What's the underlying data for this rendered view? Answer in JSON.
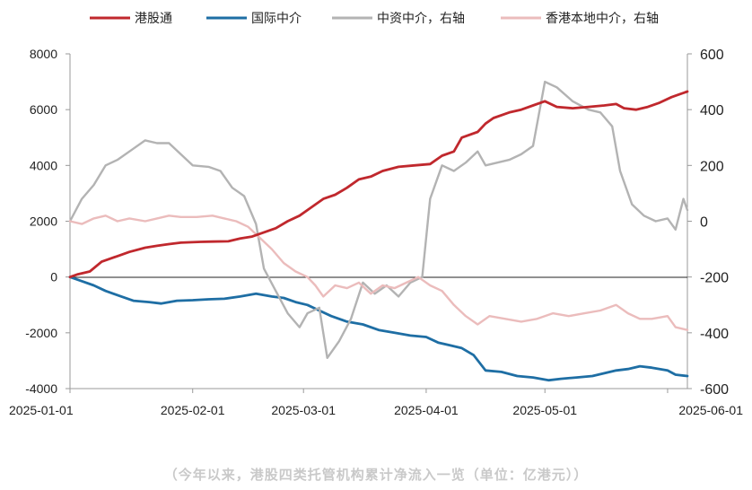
{
  "caption": "（今年以来，港股四类托管机构累计净流入一览（单位：亿港元））",
  "chart_data": {
    "type": "line",
    "x_ticks": [
      "2025-01-01",
      "2025-02-01",
      "2025-03-01",
      "2025-04-01",
      "2025-05-01",
      "2025-06-01"
    ],
    "x_range": [
      "2025-01-01",
      "2025-06-06"
    ],
    "y_left": {
      "lim": [
        -4000,
        8000
      ],
      "ticks": [
        -4000,
        -2000,
        0,
        2000,
        4000,
        6000,
        8000
      ]
    },
    "y_right": {
      "lim": [
        -600,
        600
      ],
      "ticks": [
        -600,
        -400,
        -200,
        0,
        200,
        400,
        600
      ]
    },
    "grid": false,
    "legend_position": "top",
    "series": [
      {
        "name": "港股通",
        "axis": "left",
        "color": "#c0282d",
        "width": 2.8,
        "points": [
          [
            "2025-01-01",
            0
          ],
          [
            "2025-01-03",
            100
          ],
          [
            "2025-01-06",
            200
          ],
          [
            "2025-01-09",
            550
          ],
          [
            "2025-01-13",
            750
          ],
          [
            "2025-01-16",
            900
          ],
          [
            "2025-01-20",
            1050
          ],
          [
            "2025-01-23",
            1120
          ],
          [
            "2025-01-26",
            1180
          ],
          [
            "2025-01-29",
            1230
          ],
          [
            "2025-02-03",
            1260
          ],
          [
            "2025-02-06",
            1270
          ],
          [
            "2025-02-10",
            1280
          ],
          [
            "2025-02-13",
            1380
          ],
          [
            "2025-02-16",
            1450
          ],
          [
            "2025-02-19",
            1600
          ],
          [
            "2025-02-22",
            1750
          ],
          [
            "2025-02-25",
            2000
          ],
          [
            "2025-02-28",
            2200
          ],
          [
            "2025-03-03",
            2500
          ],
          [
            "2025-03-06",
            2800
          ],
          [
            "2025-03-09",
            2950
          ],
          [
            "2025-03-12",
            3200
          ],
          [
            "2025-03-15",
            3500
          ],
          [
            "2025-03-18",
            3600
          ],
          [
            "2025-03-21",
            3800
          ],
          [
            "2025-03-25",
            3950
          ],
          [
            "2025-03-29",
            4000
          ],
          [
            "2025-04-02",
            4050
          ],
          [
            "2025-04-05",
            4350
          ],
          [
            "2025-04-08",
            4500
          ],
          [
            "2025-04-10",
            5000
          ],
          [
            "2025-04-14",
            5200
          ],
          [
            "2025-04-16",
            5500
          ],
          [
            "2025-04-18",
            5700
          ],
          [
            "2025-04-22",
            5900
          ],
          [
            "2025-04-25",
            6000
          ],
          [
            "2025-04-28",
            6150
          ],
          [
            "2025-05-01",
            6300
          ],
          [
            "2025-05-04",
            6100
          ],
          [
            "2025-05-08",
            6050
          ],
          [
            "2025-05-12",
            6100
          ],
          [
            "2025-05-16",
            6150
          ],
          [
            "2025-05-19",
            6200
          ],
          [
            "2025-05-21",
            6050
          ],
          [
            "2025-05-24",
            6000
          ],
          [
            "2025-05-27",
            6100
          ],
          [
            "2025-05-30",
            6250
          ],
          [
            "2025-06-02",
            6450
          ],
          [
            "2025-06-04",
            6550
          ],
          [
            "2025-06-06",
            6650
          ]
        ]
      },
      {
        "name": "国际中介",
        "axis": "left",
        "color": "#1e6ea4",
        "width": 2.8,
        "points": [
          [
            "2025-01-01",
            0
          ],
          [
            "2025-01-04",
            -150
          ],
          [
            "2025-01-07",
            -300
          ],
          [
            "2025-01-10",
            -500
          ],
          [
            "2025-01-14",
            -700
          ],
          [
            "2025-01-17",
            -850
          ],
          [
            "2025-01-21",
            -900
          ],
          [
            "2025-01-24",
            -950
          ],
          [
            "2025-01-28",
            -850
          ],
          [
            "2025-02-01",
            -830
          ],
          [
            "2025-02-05",
            -800
          ],
          [
            "2025-02-09",
            -780
          ],
          [
            "2025-02-13",
            -700
          ],
          [
            "2025-02-17",
            -600
          ],
          [
            "2025-02-21",
            -700
          ],
          [
            "2025-02-24",
            -750
          ],
          [
            "2025-02-27",
            -900
          ],
          [
            "2025-03-02",
            -1000
          ],
          [
            "2025-03-05",
            -1200
          ],
          [
            "2025-03-08",
            -1400
          ],
          [
            "2025-03-12",
            -1600
          ],
          [
            "2025-03-16",
            -1700
          ],
          [
            "2025-03-20",
            -1900
          ],
          [
            "2025-03-24",
            -2000
          ],
          [
            "2025-03-28",
            -2100
          ],
          [
            "2025-04-01",
            -2150
          ],
          [
            "2025-04-04",
            -2350
          ],
          [
            "2025-04-07",
            -2450
          ],
          [
            "2025-04-10",
            -2550
          ],
          [
            "2025-04-13",
            -2800
          ],
          [
            "2025-04-16",
            -3350
          ],
          [
            "2025-04-20",
            -3400
          ],
          [
            "2025-04-24",
            -3550
          ],
          [
            "2025-04-28",
            -3600
          ],
          [
            "2025-05-02",
            -3700
          ],
          [
            "2025-05-05",
            -3650
          ],
          [
            "2025-05-09",
            -3600
          ],
          [
            "2025-05-13",
            -3550
          ],
          [
            "2025-05-16",
            -3450
          ],
          [
            "2025-05-19",
            -3350
          ],
          [
            "2025-05-22",
            -3300
          ],
          [
            "2025-05-25",
            -3200
          ],
          [
            "2025-05-28",
            -3250
          ],
          [
            "2025-06-01",
            -3350
          ],
          [
            "2025-06-03",
            -3500
          ],
          [
            "2025-06-06",
            -3550
          ]
        ]
      },
      {
        "name": "中资中介，右轴",
        "axis": "right",
        "color": "#b3b3b3",
        "width": 2.4,
        "points": [
          [
            "2025-01-01",
            0
          ],
          [
            "2025-01-04",
            80
          ],
          [
            "2025-01-07",
            130
          ],
          [
            "2025-01-10",
            200
          ],
          [
            "2025-01-13",
            220
          ],
          [
            "2025-01-17",
            260
          ],
          [
            "2025-01-20",
            290
          ],
          [
            "2025-01-23",
            280
          ],
          [
            "2025-01-26",
            280
          ],
          [
            "2025-01-29",
            240
          ],
          [
            "2025-02-01",
            200
          ],
          [
            "2025-02-05",
            195
          ],
          [
            "2025-02-08",
            180
          ],
          [
            "2025-02-11",
            120
          ],
          [
            "2025-02-14",
            90
          ],
          [
            "2025-02-17",
            -10
          ],
          [
            "2025-02-19",
            -170
          ],
          [
            "2025-02-22",
            -250
          ],
          [
            "2025-02-25",
            -330
          ],
          [
            "2025-02-28",
            -380
          ],
          [
            "2025-03-02",
            -330
          ],
          [
            "2025-03-05",
            -310
          ],
          [
            "2025-03-07",
            -490
          ],
          [
            "2025-03-10",
            -430
          ],
          [
            "2025-03-13",
            -350
          ],
          [
            "2025-03-16",
            -220
          ],
          [
            "2025-03-19",
            -260
          ],
          [
            "2025-03-22",
            -230
          ],
          [
            "2025-03-25",
            -270
          ],
          [
            "2025-03-28",
            -220
          ],
          [
            "2025-03-31",
            -200
          ],
          [
            "2025-04-02",
            80
          ],
          [
            "2025-04-05",
            200
          ],
          [
            "2025-04-08",
            180
          ],
          [
            "2025-04-11",
            210
          ],
          [
            "2025-04-14",
            250
          ],
          [
            "2025-04-16",
            200
          ],
          [
            "2025-04-19",
            210
          ],
          [
            "2025-04-22",
            220
          ],
          [
            "2025-04-25",
            240
          ],
          [
            "2025-04-28",
            270
          ],
          [
            "2025-05-01",
            500
          ],
          [
            "2025-05-04",
            480
          ],
          [
            "2025-05-08",
            430
          ],
          [
            "2025-05-12",
            400
          ],
          [
            "2025-05-15",
            390
          ],
          [
            "2025-05-18",
            340
          ],
          [
            "2025-05-20",
            180
          ],
          [
            "2025-05-23",
            60
          ],
          [
            "2025-05-26",
            20
          ],
          [
            "2025-05-29",
            0
          ],
          [
            "2025-06-01",
            10
          ],
          [
            "2025-06-03",
            -30
          ],
          [
            "2025-06-05",
            80
          ],
          [
            "2025-06-06",
            40
          ]
        ]
      },
      {
        "name": "香港本地中介，右轴",
        "axis": "right",
        "color": "#ebbcbc",
        "width": 2.4,
        "points": [
          [
            "2025-01-01",
            0
          ],
          [
            "2025-01-04",
            -10
          ],
          [
            "2025-01-07",
            10
          ],
          [
            "2025-01-10",
            20
          ],
          [
            "2025-01-13",
            0
          ],
          [
            "2025-01-16",
            10
          ],
          [
            "2025-01-20",
            0
          ],
          [
            "2025-01-23",
            10
          ],
          [
            "2025-01-26",
            20
          ],
          [
            "2025-01-29",
            15
          ],
          [
            "2025-02-02",
            15
          ],
          [
            "2025-02-06",
            20
          ],
          [
            "2025-02-09",
            10
          ],
          [
            "2025-02-12",
            0
          ],
          [
            "2025-02-15",
            -20
          ],
          [
            "2025-02-18",
            -60
          ],
          [
            "2025-02-21",
            -100
          ],
          [
            "2025-02-24",
            -150
          ],
          [
            "2025-02-27",
            -180
          ],
          [
            "2025-03-02",
            -200
          ],
          [
            "2025-03-04",
            -230
          ],
          [
            "2025-03-06",
            -270
          ],
          [
            "2025-03-09",
            -230
          ],
          [
            "2025-03-12",
            -240
          ],
          [
            "2025-03-15",
            -220
          ],
          [
            "2025-03-18",
            -260
          ],
          [
            "2025-03-21",
            -230
          ],
          [
            "2025-03-24",
            -240
          ],
          [
            "2025-03-27",
            -220
          ],
          [
            "2025-03-30",
            -200
          ],
          [
            "2025-04-02",
            -230
          ],
          [
            "2025-04-05",
            -250
          ],
          [
            "2025-04-08",
            -300
          ],
          [
            "2025-04-11",
            -340
          ],
          [
            "2025-04-14",
            -370
          ],
          [
            "2025-04-17",
            -340
          ],
          [
            "2025-04-21",
            -350
          ],
          [
            "2025-04-25",
            -360
          ],
          [
            "2025-04-29",
            -350
          ],
          [
            "2025-05-03",
            -330
          ],
          [
            "2025-05-07",
            -340
          ],
          [
            "2025-05-11",
            -330
          ],
          [
            "2025-05-15",
            -320
          ],
          [
            "2025-05-19",
            -300
          ],
          [
            "2025-05-22",
            -330
          ],
          [
            "2025-05-25",
            -350
          ],
          [
            "2025-05-28",
            -350
          ],
          [
            "2025-06-01",
            -340
          ],
          [
            "2025-06-03",
            -380
          ],
          [
            "2025-06-06",
            -390
          ]
        ]
      }
    ]
  }
}
